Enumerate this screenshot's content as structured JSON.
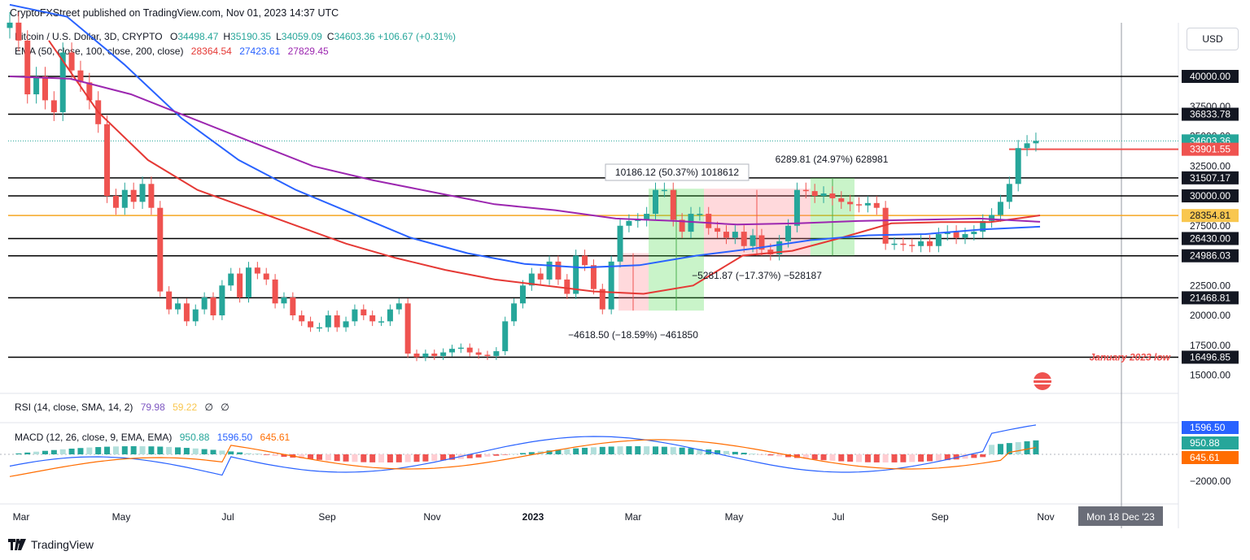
{
  "header": {
    "publisher_line": "CryptoFXStreet published on TradingView.com, Nov 01, 2023 14:37 UTC"
  },
  "footer": {
    "brand": "TradingView"
  },
  "currency_button": "USD",
  "legend": {
    "symbol": "Bitcoin / U.S. Dollar, 3D, CRYPTO",
    "ohlc": [
      {
        "k": "O",
        "v": "34498.47"
      },
      {
        "k": "H",
        "v": "35190.35"
      },
      {
        "k": "L",
        "v": "34059.09"
      },
      {
        "k": "C",
        "v": "34603.36"
      }
    ],
    "change": "+106.67 (+0.31%)",
    "ema_label": "EMA (50, close, 100, close, 200, close)",
    "ema_values": [
      "28364.54",
      "27423.61",
      "27829.45"
    ],
    "rsi_label": "RSI (14, close, SMA, 14, 2)",
    "rsi_values": [
      "79.98",
      "59.22",
      "∅",
      "∅"
    ],
    "macd_label": "MACD (12, 26, close, 9, EMA, EMA)",
    "macd_values": [
      "950.88",
      "1596.50",
      "645.61"
    ]
  },
  "colors": {
    "up": "#26a69a",
    "down": "#ef5350",
    "ema50": "#e53935",
    "ema100": "#2962ff",
    "ema200": "#9c27b0",
    "macd": "#2962ff",
    "signal": "#ff6d00"
  },
  "x_axis": {
    "ticks": [
      "Mar",
      "May",
      "Jul",
      "Sep",
      "Nov",
      "2023",
      "Mar",
      "May",
      "Jul",
      "Sep",
      "Nov"
    ],
    "crosshair_label": "Mon 18 Dec '23"
  },
  "y_axis": {
    "plain_ticks": [
      "37500.00",
      "35000.00",
      "32500.00",
      "27500.00",
      "22500.00",
      "20000.00",
      "17500.00",
      "15000.00"
    ],
    "level_labels": [
      "40000.00",
      "36833.78",
      "31507.17",
      "30000.00",
      "26430.00",
      "24986.03",
      "21468.81",
      "16496.85"
    ],
    "highlight_labels": [
      {
        "text": "34603.36",
        "color": "#26a69a"
      },
      {
        "text": "33901.55",
        "color": "#ef5350"
      },
      {
        "text": "28354.81",
        "color": "#f9c74f"
      }
    ],
    "macd_labels": [
      {
        "text": "1596.50",
        "color": "#2962ff"
      },
      {
        "text": "950.88",
        "color": "#26a69a"
      },
      {
        "text": "645.61",
        "color": "#ff6d00"
      }
    ],
    "macd_tick": "−2000.00"
  },
  "annotations": {
    "jan_low": "January 2023 low",
    "measure_up_1": "10186.12 (50.37%) 1018612",
    "measure_up_2": "6289.81 (24.97%) 628981",
    "measure_down_1": "−5281.87 (−17.37%) −528187",
    "measure_down_2": "−4618.50 (−18.59%) −461850"
  },
  "chart_data": {
    "type": "candlestick",
    "title": "Bitcoin / U.S. Dollar, 3D",
    "horizontal_levels": [
      40000,
      36833.78,
      31507.17,
      30000,
      28354.81,
      26430,
      24986.03,
      21468.81,
      16496.85,
      33901.55
    ],
    "last_close": 34603.36,
    "closes": [
      44500,
      43000,
      38500,
      40000,
      38000,
      37000,
      42000,
      40500,
      39500,
      38000,
      36000,
      30000,
      29000,
      30500,
      29500,
      31000,
      29000,
      22000,
      20500,
      21000,
      19500,
      20500,
      21500,
      20000,
      22500,
      23500,
      21500,
      24000,
      23500,
      23000,
      21000,
      21500,
      20000,
      19500,
      19000,
      19000,
      20000,
      19000,
      19500,
      20500,
      20000,
      19500,
      19500,
      20500,
      21000,
      16800,
      16500,
      16800,
      16600,
      16900,
      17200,
      17300,
      16900,
      16700,
      16600,
      17000,
      19500,
      21000,
      22500,
      23500,
      23000,
      24500,
      23000,
      21800,
      25000,
      24200,
      22200,
      20500,
      24500,
      27500,
      27900,
      28000,
      28500,
      30500,
      30500,
      28000,
      27000,
      28500,
      28500,
      27300,
      27000,
      26500,
      27000,
      25800,
      26700,
      25500,
      25100,
      26200,
      27500,
      30500,
      30400,
      30000,
      30200,
      29800,
      29500,
      29300,
      29200,
      29400,
      29000,
      26000,
      26000,
      25900,
      25800,
      26200,
      25800,
      26800,
      27000,
      26500,
      26800,
      27000,
      27900,
      28400,
      29500,
      31000,
      34000,
      34400,
      34603
    ],
    "ema50_approx": [
      43000,
      37000,
      33000,
      30500,
      29000,
      27500,
      26000,
      24800,
      23800,
      23000,
      22500,
      22000,
      21800,
      22500,
      25000,
      25400,
      26500,
      27700,
      27800,
      27800,
      28364
    ],
    "ema100_approx": [
      46000,
      45000,
      41000,
      36500,
      33000,
      30500,
      28500,
      26500,
      25200,
      24300,
      24000,
      24200,
      25000,
      25600,
      26300,
      26700,
      26800,
      27200,
      27423
    ],
    "ema200_approx": [
      40000,
      39800,
      38500,
      36500,
      34500,
      32500,
      31300,
      30300,
      29300,
      28800,
      28100,
      27900,
      27600,
      27700,
      27900,
      28000,
      28100,
      27829
    ],
    "rsi": {
      "value": 79.98,
      "sma": 59.22
    },
    "macd": {
      "macd": 1596.5,
      "signal": 645.61,
      "histogram": 950.88
    }
  }
}
